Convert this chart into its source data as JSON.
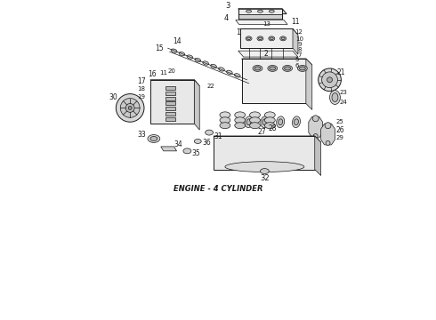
{
  "title": "ENGINE - 4 CYLINDER",
  "title_fontsize": 6,
  "title_fontweight": "bold",
  "title_fontstyle": "italic",
  "background_color": "#ffffff",
  "line_color": "#1a1a1a",
  "fig_width": 4.9,
  "fig_height": 3.6,
  "dpi": 100,
  "xlim": [
    0,
    490
  ],
  "ylim": [
    0,
    360
  ]
}
